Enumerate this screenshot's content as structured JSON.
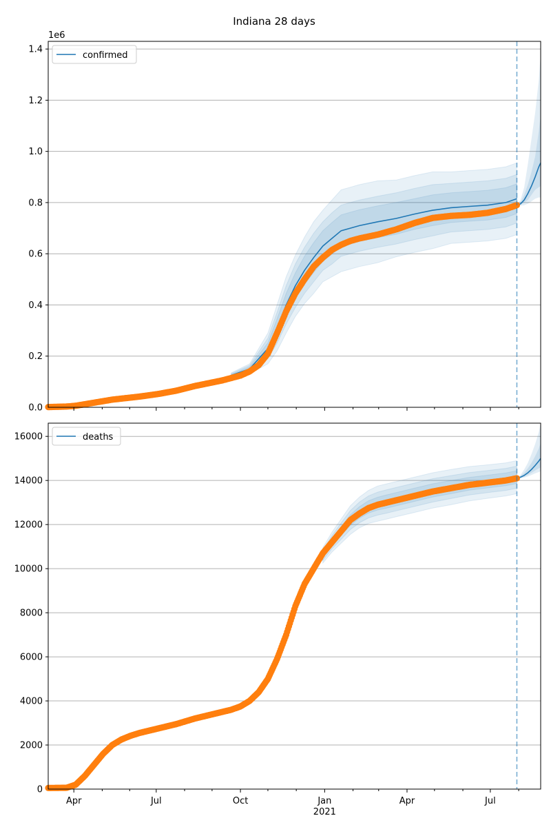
{
  "title": "Indiana 28 days",
  "colors": {
    "model": "#1f77b4",
    "observed": "#ff7f0e",
    "band": "#1f77b4",
    "grid": "#b0b0b0",
    "vline": "#1f77b4"
  },
  "x_axis": {
    "tick_labels": [
      "Apr",
      "Jul",
      "Oct",
      "Jan",
      "Apr",
      "Jul"
    ],
    "year_label": "2021",
    "range_days": [
      0,
      538
    ],
    "major_ticks_days": [
      28,
      118,
      210,
      302,
      392,
      483
    ],
    "minor_ticks_days": [
      59,
      89,
      149,
      179,
      240,
      271,
      333,
      361,
      422,
      453,
      514
    ],
    "year_tick_index": 3,
    "forecast_start_day": 512
  },
  "chart_data": [
    {
      "type": "line",
      "name": "confirmed",
      "legend": "confirmed",
      "legend_position": "top-left",
      "grid": true,
      "y_multiplier_label": "1e6",
      "ylim": [
        0,
        1.43
      ],
      "y_ticks": [
        0.0,
        0.2,
        0.4,
        0.6,
        0.8,
        1.0,
        1.2,
        1.4
      ],
      "y_tick_labels": [
        "0.0",
        "0.2",
        "0.4",
        "0.6",
        "0.8",
        "1.0",
        "1.2",
        "1.4"
      ],
      "observed": {
        "x": [
          0,
          20,
          30,
          50,
          70,
          100,
          120,
          140,
          160,
          190,
          210,
          220,
          230,
          240,
          250,
          260,
          270,
          280,
          290,
          300,
          310,
          320,
          330,
          340,
          360,
          380,
          400,
          420,
          440,
          460,
          480,
          500,
          512
        ],
        "y": [
          0.001,
          0.003,
          0.006,
          0.018,
          0.03,
          0.042,
          0.052,
          0.065,
          0.083,
          0.105,
          0.124,
          0.14,
          0.165,
          0.21,
          0.29,
          0.375,
          0.445,
          0.5,
          0.55,
          0.585,
          0.615,
          0.635,
          0.65,
          0.66,
          0.675,
          0.695,
          0.72,
          0.74,
          0.748,
          0.752,
          0.76,
          0.775,
          0.79
        ]
      },
      "model": {
        "x": [
          200,
          220,
          240,
          250,
          260,
          270,
          280,
          290,
          300,
          310,
          320,
          330,
          340,
          360,
          380,
          400,
          420,
          440,
          460,
          480,
          500,
          512
        ],
        "y": [
          0.125,
          0.15,
          0.23,
          0.31,
          0.4,
          0.475,
          0.535,
          0.585,
          0.63,
          0.66,
          0.69,
          0.7,
          0.71,
          0.725,
          0.738,
          0.755,
          0.77,
          0.78,
          0.785,
          0.79,
          0.8,
          0.815
        ]
      },
      "forecast": {
        "x": [
          512,
          516,
          520,
          524,
          528,
          532,
          536,
          538
        ],
        "y": [
          0.79,
          0.795,
          0.81,
          0.835,
          0.865,
          0.9,
          0.94,
          0.955
        ]
      },
      "forecast_band": {
        "inner_upper": [
          0.79,
          0.8,
          0.83,
          0.87,
          0.92,
          0.98,
          1.08,
          1.14
        ],
        "outer_upper": [
          0.79,
          0.81,
          0.86,
          0.95,
          1.05,
          1.15,
          1.28,
          1.38
        ],
        "inner_lower": [
          0.79,
          0.792,
          0.8,
          0.81,
          0.83,
          0.85,
          0.86,
          0.865
        ],
        "outer_lower": [
          0.79,
          0.788,
          0.79,
          0.795,
          0.805,
          0.815,
          0.82,
          0.82
        ]
      },
      "bands": [
        {
          "spread": [
            0.01,
            0.02,
            0.06,
            0.09,
            0.11,
            0.12,
            0.13,
            0.14,
            0.14,
            0.15,
            0.16,
            0.16,
            0.16,
            0.16,
            0.15,
            0.15,
            0.15,
            0.14,
            0.14,
            0.14,
            0.14,
            0.14
          ]
        },
        {
          "spread": [
            0.007,
            0.014,
            0.04,
            0.06,
            0.075,
            0.085,
            0.09,
            0.095,
            0.095,
            0.1,
            0.1,
            0.1,
            0.1,
            0.1,
            0.1,
            0.1,
            0.1,
            0.095,
            0.095,
            0.095,
            0.095,
            0.095
          ]
        },
        {
          "spread": [
            0.004,
            0.008,
            0.022,
            0.035,
            0.045,
            0.05,
            0.055,
            0.058,
            0.06,
            0.062,
            0.062,
            0.062,
            0.062,
            0.062,
            0.062,
            0.06,
            0.06,
            0.058,
            0.058,
            0.058,
            0.058,
            0.058
          ]
        }
      ]
    },
    {
      "type": "line",
      "name": "deaths",
      "legend": "deaths",
      "legend_position": "top-left",
      "grid": true,
      "ylim": [
        0,
        16600
      ],
      "y_ticks": [
        0,
        2000,
        4000,
        6000,
        8000,
        10000,
        12000,
        14000,
        16000
      ],
      "y_tick_labels": [
        "0",
        "2000",
        "4000",
        "6000",
        "8000",
        "10000",
        "12000",
        "14000",
        "16000"
      ],
      "observed": {
        "x": [
          0,
          20,
          30,
          40,
          50,
          60,
          70,
          80,
          90,
          100,
          110,
          120,
          140,
          160,
          180,
          200,
          210,
          220,
          230,
          240,
          250,
          260,
          270,
          280,
          290,
          300,
          310,
          320,
          330,
          340,
          350,
          360,
          370,
          380,
          400,
          420,
          440,
          460,
          480,
          500,
          512
        ],
        "y": [
          50,
          60,
          200,
          600,
          1100,
          1600,
          2000,
          2250,
          2420,
          2550,
          2650,
          2750,
          2950,
          3200,
          3400,
          3600,
          3750,
          4000,
          4400,
          5000,
          5900,
          7000,
          8300,
          9300,
          10000,
          10700,
          11200,
          11700,
          12200,
          12500,
          12750,
          12900,
          13000,
          13100,
          13300,
          13500,
          13650,
          13800,
          13900,
          14000,
          14100
        ]
      },
      "model": {
        "x": [
          300,
          310,
          320,
          330,
          340,
          350,
          360,
          370,
          380,
          400,
          420,
          440,
          460,
          480,
          500,
          512
        ],
        "y": [
          10600,
          11200,
          11700,
          12200,
          12550,
          12800,
          12950,
          13050,
          13150,
          13350,
          13550,
          13700,
          13850,
          13950,
          14050,
          14150
        ]
      },
      "forecast": {
        "x": [
          512,
          516,
          520,
          524,
          528,
          532,
          536,
          538
        ],
        "y": [
          14100,
          14150,
          14230,
          14350,
          14500,
          14680,
          14880,
          15000
        ]
      },
      "forecast_band": {
        "inner_upper": [
          14100,
          14200,
          14350,
          14550,
          14800,
          15100,
          15450,
          15700
        ],
        "outer_upper": [
          14100,
          14250,
          14500,
          14800,
          15200,
          15650,
          16200,
          16600
        ],
        "inner_lower": [
          14100,
          14120,
          14170,
          14250,
          14350,
          14450,
          14550,
          14600
        ],
        "outer_lower": [
          14100,
          14100,
          14130,
          14180,
          14250,
          14320,
          14380,
          14420
        ]
      },
      "bands": [
        {
          "spread": [
            350,
            450,
            550,
            650,
            700,
            750,
            800,
            800,
            800,
            800,
            800,
            800,
            780,
            760,
            750,
            750
          ]
        },
        {
          "spread": [
            230,
            300,
            370,
            430,
            470,
            500,
            520,
            530,
            530,
            530,
            530,
            520,
            510,
            500,
            500,
            500
          ]
        },
        {
          "spread": [
            120,
            160,
            200,
            240,
            260,
            280,
            290,
            300,
            300,
            300,
            300,
            300,
            290,
            290,
            290,
            290
          ]
        }
      ]
    }
  ]
}
